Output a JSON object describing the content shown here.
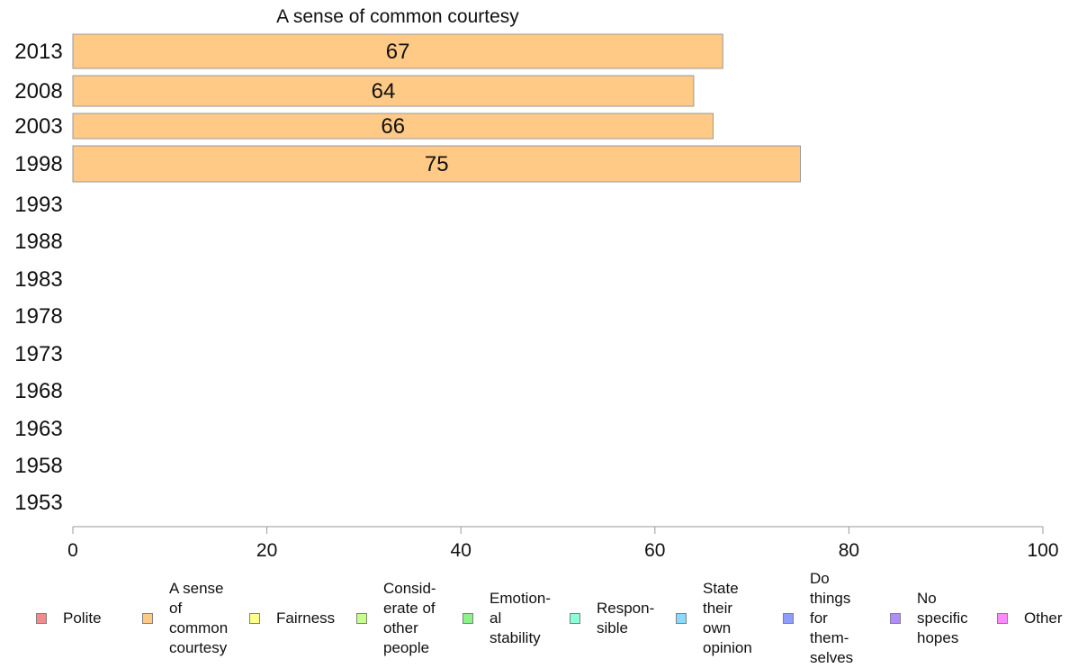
{
  "chart_data": {
    "type": "bar",
    "orientation": "horizontal",
    "title": "A sense of common courtesy",
    "categories": [
      "2013",
      "2008",
      "2003",
      "1998",
      "1993",
      "1988",
      "1983",
      "1978",
      "1973",
      "1968",
      "1963",
      "1958",
      "1953"
    ],
    "series": [
      {
        "name": "A sense of common courtesy",
        "color": "#ffc986",
        "values": [
          67,
          64,
          66,
          75,
          null,
          null,
          null,
          null,
          null,
          null,
          null,
          null,
          null
        ]
      }
    ],
    "data_labels": [
      "67",
      "64",
      "66",
      "75",
      "",
      "",
      "",
      "",
      "",
      "",
      "",
      "",
      ""
    ],
    "xlim": [
      0,
      100
    ],
    "xticks": [
      0,
      20,
      40,
      60,
      80,
      100
    ],
    "xlabel": "",
    "ylabel": "",
    "grid": false,
    "legend": {
      "placement": "bottom",
      "items": [
        {
          "label": "Polite",
          "color": "#f08c8c"
        },
        {
          "label": "A sense\nof\ncommon\ncourtesy",
          "color": "#ffc986"
        },
        {
          "label": "Fairness",
          "color": "#ffff8c"
        },
        {
          "label": "Consid-\nerate of\nother\npeople",
          "color": "#c6ff8c"
        },
        {
          "label": "Emotion-\nal\nstability",
          "color": "#8cf08c"
        },
        {
          "label": "Respon-\nsible",
          "color": "#8cffd9"
        },
        {
          "label": "State\ntheir\nown\nopinion",
          "color": "#8cd9ff"
        },
        {
          "label": "Do\nthings\nfor\nthem-\nselves",
          "color": "#8c9cff"
        },
        {
          "label": "No\nspecific\nhopes",
          "color": "#b08cff"
        },
        {
          "label": "Other",
          "color": "#ff8cff"
        }
      ]
    }
  }
}
